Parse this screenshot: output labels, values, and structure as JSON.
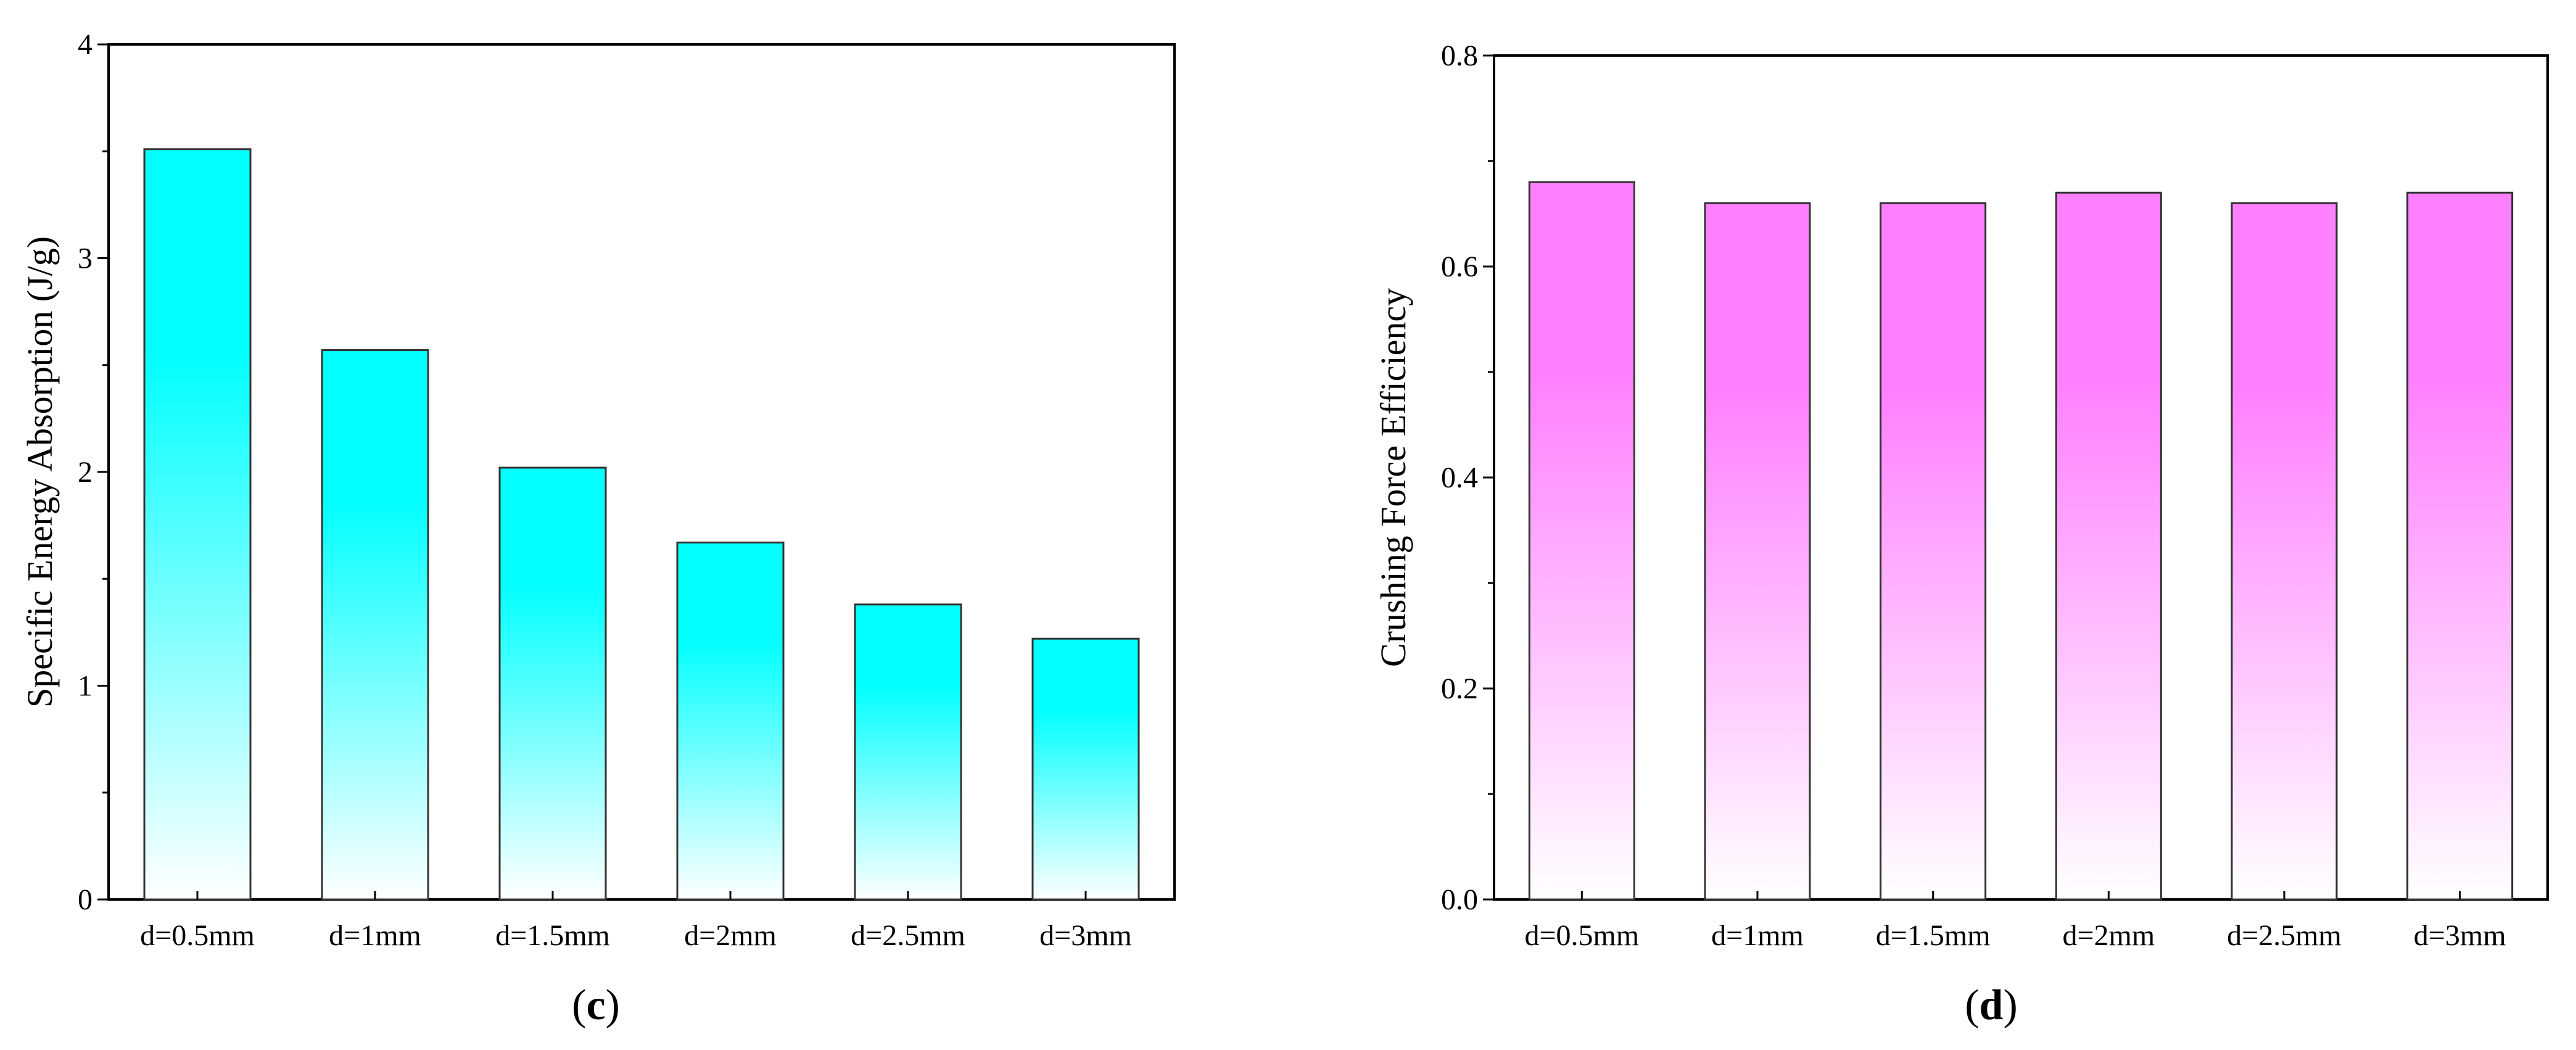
{
  "chart_data": [
    {
      "type": "bar",
      "panel_label": "c",
      "title": "",
      "xlabel": "",
      "ylabel": "Specific Energy Absorption (J/g)",
      "categories": [
        "d=0.5mm",
        "d=1mm",
        "d=1.5mm",
        "d=2mm",
        "d=2.5mm",
        "d=3mm"
      ],
      "values": [
        3.51,
        2.57,
        2.02,
        1.67,
        1.38,
        1.22
      ],
      "ylim": [
        0,
        4
      ],
      "yticks": [
        0,
        1,
        2,
        3,
        4
      ],
      "ytick_labels": [
        "0",
        "1",
        "2",
        "3",
        "4"
      ],
      "bar_color": "#00ffff",
      "grid": false,
      "legend": "none"
    },
    {
      "type": "bar",
      "panel_label": "d",
      "title": "",
      "xlabel": "",
      "ylabel": "Crushing Force Efficiency",
      "categories": [
        "d=0.5mm",
        "d=1mm",
        "d=1.5mm",
        "d=2mm",
        "d=2.5mm",
        "d=3mm"
      ],
      "values": [
        0.68,
        0.66,
        0.66,
        0.67,
        0.66,
        0.67
      ],
      "ylim": [
        0,
        0.8
      ],
      "yticks": [
        0,
        0.2,
        0.4,
        0.6,
        0.8
      ],
      "ytick_labels": [
        "0.0",
        "0.2",
        "0.4",
        "0.6",
        "0.8"
      ],
      "bar_color": "#ff80ff",
      "grid": false,
      "legend": "none"
    }
  ]
}
